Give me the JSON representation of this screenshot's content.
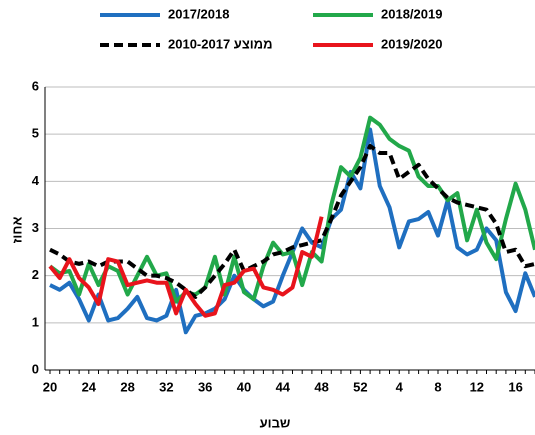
{
  "chart_data": {
    "type": "line",
    "x_label": "שבוע",
    "y_label": "אחוז",
    "categories": [
      "20",
      null,
      null,
      null,
      "24",
      null,
      null,
      null,
      "28",
      null,
      null,
      null,
      "32",
      null,
      null,
      null,
      "36",
      null,
      null,
      null,
      "40",
      null,
      null,
      null,
      "44",
      null,
      null,
      null,
      "48",
      null,
      null,
      null,
      "52",
      null,
      null,
      null,
      "4",
      null,
      null,
      null,
      "8",
      null,
      null,
      null,
      "12",
      null,
      null,
      null,
      "16",
      null,
      null
    ],
    "series": [
      {
        "name": "2017/2018",
        "color": "#1f6fc0",
        "dashed": false,
        "values": [
          1.8,
          1.7,
          1.85,
          1.5,
          1.05,
          1.6,
          1.05,
          1.1,
          1.3,
          1.55,
          1.1,
          1.05,
          1.15,
          1.7,
          0.8,
          1.15,
          1.2,
          1.3,
          1.5,
          2.0,
          1.7,
          1.5,
          1.35,
          1.45,
          2.0,
          2.5,
          3.0,
          2.7,
          2.6,
          3.2,
          3.4,
          4.2,
          3.85,
          5.1,
          3.9,
          3.45,
          2.6,
          3.15,
          3.2,
          3.35,
          2.85,
          3.6,
          2.6,
          2.45,
          2.55,
          3.0,
          2.75,
          1.65,
          1.25,
          2.05,
          1.55
        ]
      },
      {
        "name": "2018/2019",
        "color": "#22a84a",
        "dashed": false,
        "values": [
          2.2,
          2.05,
          2.1,
          1.6,
          2.25,
          1.8,
          2.2,
          2.1,
          1.6,
          2.0,
          2.4,
          2.0,
          2.05,
          1.45,
          1.65,
          1.6,
          1.75,
          2.4,
          1.6,
          2.4,
          1.65,
          1.5,
          2.2,
          2.7,
          2.45,
          2.5,
          1.8,
          2.5,
          2.3,
          3.5,
          4.3,
          4.1,
          4.5,
          5.35,
          5.2,
          4.9,
          4.75,
          4.65,
          4.1,
          3.9,
          3.9,
          3.6,
          3.75,
          2.75,
          3.4,
          2.7,
          2.35,
          3.2,
          3.95,
          3.4,
          2.55
        ]
      },
      {
        "name": "ממוצע 2010-2017",
        "color": "#000000",
        "dashed": true,
        "values": [
          2.55,
          2.45,
          2.3,
          2.25,
          2.3,
          2.2,
          2.3,
          2.3,
          2.3,
          2.15,
          2.0,
          2.0,
          1.95,
          1.85,
          1.7,
          1.55,
          1.75,
          2.0,
          2.25,
          2.55,
          2.1,
          2.2,
          2.3,
          2.45,
          2.5,
          2.6,
          2.65,
          2.7,
          2.75,
          3.2,
          3.7,
          4.0,
          4.3,
          4.75,
          4.6,
          4.6,
          4.05,
          4.2,
          4.35,
          4.05,
          3.85,
          3.65,
          3.55,
          3.5,
          3.45,
          3.4,
          3.1,
          2.5,
          2.55,
          2.2,
          2.25
        ]
      },
      {
        "name": "2019/2020",
        "color": "#e8141c",
        "dashed": false,
        "values": [
          2.2,
          1.95,
          2.35,
          1.95,
          1.75,
          1.4,
          2.35,
          2.3,
          1.8,
          1.85,
          1.9,
          1.85,
          1.85,
          1.2,
          1.7,
          1.4,
          1.15,
          1.2,
          1.8,
          1.85,
          2.1,
          2.15,
          1.75,
          1.7,
          1.6,
          1.75,
          2.5,
          2.4,
          3.25,
          null,
          null,
          null,
          null,
          null,
          null,
          null,
          null,
          null,
          null,
          null,
          null,
          null,
          null,
          null,
          null,
          null,
          null,
          null,
          null,
          null,
          null
        ]
      }
    ],
    "ylim": [
      0,
      6
    ],
    "yticks": [
      0,
      1,
      2,
      3,
      4,
      5,
      6
    ],
    "grid": true
  }
}
